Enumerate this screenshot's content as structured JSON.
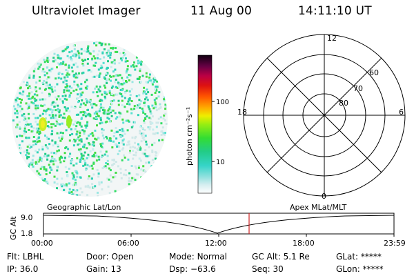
{
  "header": {
    "instrument": "Ultraviolet Imager",
    "date": "11 Aug 00",
    "time": "14:11:10 UT"
  },
  "colorbar": {
    "unit_label": "photon cm⁻²s⁻¹",
    "ticks": [
      "100",
      "10"
    ]
  },
  "polar_grid": {
    "mlt_labels": [
      "12",
      "18",
      "6",
      "0"
    ],
    "mlat_labels": [
      "60",
      "70",
      "80"
    ]
  },
  "timeline": {
    "left_label": "Geographic Lat/Lon",
    "right_label": "Apex MLat/MLT",
    "axis_title": "GC Alt",
    "y_ticks": [
      "9.0",
      "1.8"
    ],
    "x_ticks": [
      "00:00",
      "06:00",
      "12:00",
      "18:00",
      "23:59"
    ],
    "marker_color": "#cc2222"
  },
  "status": {
    "row1": [
      {
        "label": "Flt:",
        "value": "LBHL"
      },
      {
        "label": "Door:",
        "value": "Open"
      },
      {
        "label": "Mode:",
        "value": "Normal"
      },
      {
        "label": "GC Alt:",
        "value": "5.1 Re"
      },
      {
        "label": "GLat:",
        "value": "*****"
      }
    ],
    "row2": [
      {
        "label": "IP:",
        "value": "36.0"
      },
      {
        "label": "Gain:",
        "value": "13"
      },
      {
        "label": "Dsp:",
        "value": "−63.6"
      },
      {
        "label": "Seq:",
        "value": "30"
      },
      {
        "label": "GLon:",
        "value": "*****"
      }
    ]
  }
}
